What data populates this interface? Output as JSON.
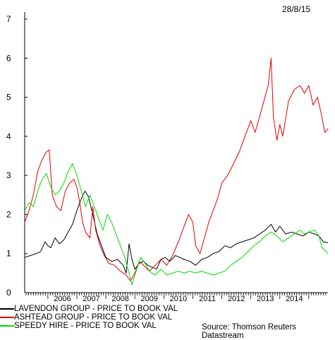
{
  "header": {
    "date": "28/8/15"
  },
  "source": "Source: Thomson Reuters Datastream",
  "chart_data": {
    "type": "line",
    "title": "",
    "xlabel": "",
    "ylabel": "",
    "xlim": [
      2005.2,
      2015.66
    ],
    "ylim": [
      0,
      7
    ],
    "yticks": [
      0,
      1,
      2,
      3,
      4,
      5,
      6,
      7
    ],
    "xtick_labels": [
      "2006",
      "2007",
      "2008",
      "2009",
      "2010",
      "2011",
      "2012",
      "2013",
      "2014"
    ],
    "grid": false,
    "legend_position": "bottom-left",
    "series": [
      {
        "name": "LAVENDON GROUP - PRICE TO BOOK VAL",
        "color": "#000000",
        "points": [
          [
            2005.2,
            0.9
          ],
          [
            2005.4,
            0.95
          ],
          [
            2005.6,
            1.0
          ],
          [
            2005.75,
            1.05
          ],
          [
            2005.9,
            1.3
          ],
          [
            2006.0,
            1.2
          ],
          [
            2006.1,
            1.15
          ],
          [
            2006.25,
            1.4
          ],
          [
            2006.4,
            1.25
          ],
          [
            2006.55,
            1.35
          ],
          [
            2006.7,
            1.55
          ],
          [
            2006.85,
            1.75
          ],
          [
            2007.0,
            2.1
          ],
          [
            2007.15,
            2.4
          ],
          [
            2007.28,
            2.6
          ],
          [
            2007.4,
            2.45
          ],
          [
            2007.55,
            2.0
          ],
          [
            2007.7,
            1.5
          ],
          [
            2007.85,
            1.2
          ],
          [
            2008.0,
            0.9
          ],
          [
            2008.2,
            0.8
          ],
          [
            2008.4,
            0.85
          ],
          [
            2008.6,
            0.7
          ],
          [
            2008.7,
            0.5
          ],
          [
            2008.8,
            1.25
          ],
          [
            2008.9,
            0.85
          ],
          [
            2009.0,
            0.6
          ],
          [
            2009.15,
            0.75
          ],
          [
            2009.3,
            0.8
          ],
          [
            2009.45,
            0.7
          ],
          [
            2009.6,
            0.65
          ],
          [
            2009.75,
            0.6
          ],
          [
            2009.9,
            0.85
          ],
          [
            2010.05,
            0.9
          ],
          [
            2010.2,
            0.8
          ],
          [
            2010.4,
            0.95
          ],
          [
            2010.55,
            0.9
          ],
          [
            2010.7,
            0.85
          ],
          [
            2010.9,
            0.8
          ],
          [
            2011.1,
            0.7
          ],
          [
            2011.3,
            0.85
          ],
          [
            2011.5,
            0.9
          ],
          [
            2011.7,
            1.0
          ],
          [
            2011.9,
            1.05
          ],
          [
            2012.1,
            1.2
          ],
          [
            2012.3,
            1.15
          ],
          [
            2012.5,
            1.25
          ],
          [
            2012.7,
            1.3
          ],
          [
            2012.9,
            1.35
          ],
          [
            2013.1,
            1.4
          ],
          [
            2013.3,
            1.5
          ],
          [
            2013.5,
            1.6
          ],
          [
            2013.7,
            1.75
          ],
          [
            2013.85,
            1.55
          ],
          [
            2014.0,
            1.7
          ],
          [
            2014.2,
            1.5
          ],
          [
            2014.4,
            1.55
          ],
          [
            2014.6,
            1.5
          ],
          [
            2014.8,
            1.45
          ],
          [
            2015.0,
            1.55
          ],
          [
            2015.2,
            1.5
          ],
          [
            2015.35,
            1.45
          ],
          [
            2015.5,
            1.3
          ],
          [
            2015.66,
            1.28
          ]
        ]
      },
      {
        "name": "ASHTEAD GROUP - PRICE TO BOOK VAL",
        "color": "#e00000",
        "points": [
          [
            2005.2,
            1.8
          ],
          [
            2005.35,
            2.1
          ],
          [
            2005.5,
            2.5
          ],
          [
            2005.65,
            3.1
          ],
          [
            2005.8,
            3.4
          ],
          [
            2005.95,
            3.6
          ],
          [
            2006.05,
            3.65
          ],
          [
            2006.15,
            2.5
          ],
          [
            2006.3,
            2.2
          ],
          [
            2006.45,
            2.1
          ],
          [
            2006.6,
            2.6
          ],
          [
            2006.75,
            2.8
          ],
          [
            2006.9,
            2.9
          ],
          [
            2007.0,
            2.7
          ],
          [
            2007.1,
            2.3
          ],
          [
            2007.2,
            1.8
          ],
          [
            2007.3,
            1.55
          ],
          [
            2007.45,
            1.4
          ],
          [
            2007.55,
            2.2
          ],
          [
            2007.65,
            1.6
          ],
          [
            2007.8,
            1.2
          ],
          [
            2007.95,
            0.95
          ],
          [
            2008.1,
            0.75
          ],
          [
            2008.3,
            0.7
          ],
          [
            2008.5,
            0.55
          ],
          [
            2008.7,
            0.45
          ],
          [
            2008.85,
            0.3
          ],
          [
            2009.0,
            0.5
          ],
          [
            2009.15,
            0.8
          ],
          [
            2009.3,
            0.7
          ],
          [
            2009.5,
            0.55
          ],
          [
            2009.7,
            0.7
          ],
          [
            2009.9,
            0.85
          ],
          [
            2010.1,
            0.7
          ],
          [
            2010.3,
            0.95
          ],
          [
            2010.5,
            1.3
          ],
          [
            2010.7,
            1.7
          ],
          [
            2010.85,
            2.0
          ],
          [
            2011.0,
            1.8
          ],
          [
            2011.1,
            1.2
          ],
          [
            2011.25,
            1.0
          ],
          [
            2011.4,
            1.4
          ],
          [
            2011.55,
            1.8
          ],
          [
            2011.7,
            2.1
          ],
          [
            2011.85,
            2.4
          ],
          [
            2012.0,
            2.8
          ],
          [
            2012.2,
            3.0
          ],
          [
            2012.4,
            3.3
          ],
          [
            2012.6,
            3.6
          ],
          [
            2012.8,
            4.0
          ],
          [
            2013.0,
            4.4
          ],
          [
            2013.15,
            4.1
          ],
          [
            2013.3,
            4.5
          ],
          [
            2013.45,
            4.9
          ],
          [
            2013.6,
            5.3
          ],
          [
            2013.7,
            6.0
          ],
          [
            2013.78,
            4.5
          ],
          [
            2013.9,
            3.9
          ],
          [
            2014.0,
            4.3
          ],
          [
            2014.1,
            4.0
          ],
          [
            2014.3,
            4.9
          ],
          [
            2014.5,
            5.2
          ],
          [
            2014.7,
            5.3
          ],
          [
            2014.85,
            5.1
          ],
          [
            2015.0,
            5.3
          ],
          [
            2015.15,
            4.8
          ],
          [
            2015.3,
            5.0
          ],
          [
            2015.45,
            4.5
          ],
          [
            2015.55,
            4.1
          ],
          [
            2015.66,
            4.2
          ]
        ]
      },
      {
        "name": "SPEEDY HIRE - PRICE TO BOOK VAL",
        "color": "#00dd00",
        "points": [
          [
            2005.2,
            2.1
          ],
          [
            2005.35,
            2.3
          ],
          [
            2005.5,
            2.2
          ],
          [
            2005.65,
            2.6
          ],
          [
            2005.8,
            2.9
          ],
          [
            2005.95,
            3.05
          ],
          [
            2006.1,
            2.7
          ],
          [
            2006.25,
            2.5
          ],
          [
            2006.4,
            2.6
          ],
          [
            2006.55,
            2.8
          ],
          [
            2006.7,
            3.1
          ],
          [
            2006.85,
            3.3
          ],
          [
            2007.0,
            3.0
          ],
          [
            2007.15,
            2.6
          ],
          [
            2007.3,
            2.2
          ],
          [
            2007.45,
            2.5
          ],
          [
            2007.6,
            2.2
          ],
          [
            2007.75,
            1.9
          ],
          [
            2007.9,
            1.6
          ],
          [
            2008.05,
            2.0
          ],
          [
            2008.2,
            1.8
          ],
          [
            2008.35,
            1.5
          ],
          [
            2008.5,
            1.2
          ],
          [
            2008.65,
            0.9
          ],
          [
            2008.8,
            0.5
          ],
          [
            2008.9,
            0.2
          ],
          [
            2009.0,
            0.45
          ],
          [
            2009.2,
            0.9
          ],
          [
            2009.35,
            0.75
          ],
          [
            2009.5,
            0.55
          ],
          [
            2009.7,
            0.45
          ],
          [
            2009.9,
            0.6
          ],
          [
            2010.1,
            0.45
          ],
          [
            2010.3,
            0.5
          ],
          [
            2010.5,
            0.55
          ],
          [
            2010.7,
            0.5
          ],
          [
            2010.9,
            0.55
          ],
          [
            2011.1,
            0.5
          ],
          [
            2011.3,
            0.55
          ],
          [
            2011.5,
            0.5
          ],
          [
            2011.7,
            0.45
          ],
          [
            2011.9,
            0.5
          ],
          [
            2012.1,
            0.55
          ],
          [
            2012.3,
            0.7
          ],
          [
            2012.5,
            0.8
          ],
          [
            2012.7,
            0.9
          ],
          [
            2012.9,
            1.05
          ],
          [
            2013.1,
            1.2
          ],
          [
            2013.3,
            1.3
          ],
          [
            2013.5,
            1.45
          ],
          [
            2013.7,
            1.55
          ],
          [
            2013.9,
            1.45
          ],
          [
            2014.1,
            1.3
          ],
          [
            2014.3,
            1.4
          ],
          [
            2014.5,
            1.5
          ],
          [
            2014.7,
            1.6
          ],
          [
            2014.85,
            1.5
          ],
          [
            2015.0,
            1.55
          ],
          [
            2015.2,
            1.6
          ],
          [
            2015.35,
            1.45
          ],
          [
            2015.45,
            1.15
          ],
          [
            2015.55,
            1.1
          ],
          [
            2015.66,
            1.0
          ]
        ]
      }
    ]
  }
}
